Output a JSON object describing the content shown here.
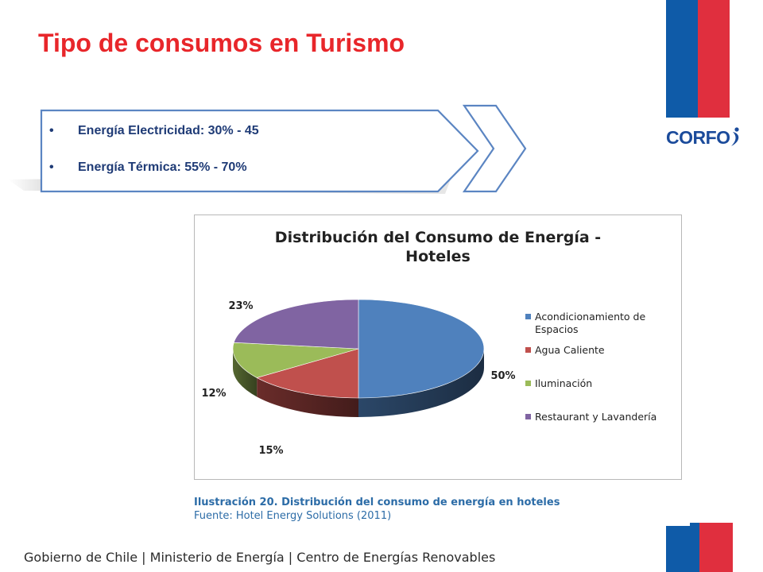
{
  "slide": {
    "title": "Tipo de consumos en Turismo",
    "bullets": [
      "Energía Electricidad: 30% - 45",
      "Energía Térmica: 55% - 70%"
    ],
    "bullet_marker": "•",
    "logo_text": "CORFO",
    "footer": "Gobierno de Chile | Ministerio de Energía | Centro de Energías Renovables",
    "caption_title": "Ilustración 20. Distribución del consumo de energía en hoteles",
    "caption_source": "Fuente: Hotel Energy Solutions (2011)",
    "colors": {
      "title_red": "#e8262a",
      "flag_blue": "#0f5ba8",
      "flag_red": "#e02f3e",
      "arrow_outline": "#5b85c2",
      "bullet_text": "#1f3b76",
      "caption_blue": "#2c6ca7"
    }
  },
  "chart_data": {
    "type": "pie",
    "title": "Distribución del Consumo de Energía - Hoteles",
    "title_lines": [
      "Distribución del Consumo de Energía -",
      "Hoteles"
    ],
    "style": "3d",
    "legend_position": "right",
    "slices": [
      {
        "label": "Acondicionamiento de Espacios",
        "label_lines": [
          "Acondicionamiento de",
          "Espacios"
        ],
        "value": 50,
        "data_label": "50%",
        "color": "#4f81bd"
      },
      {
        "label": "Agua Caliente",
        "label_lines": [
          "Agua Caliente"
        ],
        "value": 15,
        "data_label": "15%",
        "color": "#c0504d"
      },
      {
        "label": "Iluminación",
        "label_lines": [
          "Iluminación"
        ],
        "value": 12,
        "data_label": "12%",
        "color": "#9bbb59"
      },
      {
        "label": "Restaurant y Lavandería",
        "label_lines": [
          "Restaurant y Lavandería"
        ],
        "value": 23,
        "data_label": "23%",
        "color": "#8064a2"
      }
    ]
  }
}
